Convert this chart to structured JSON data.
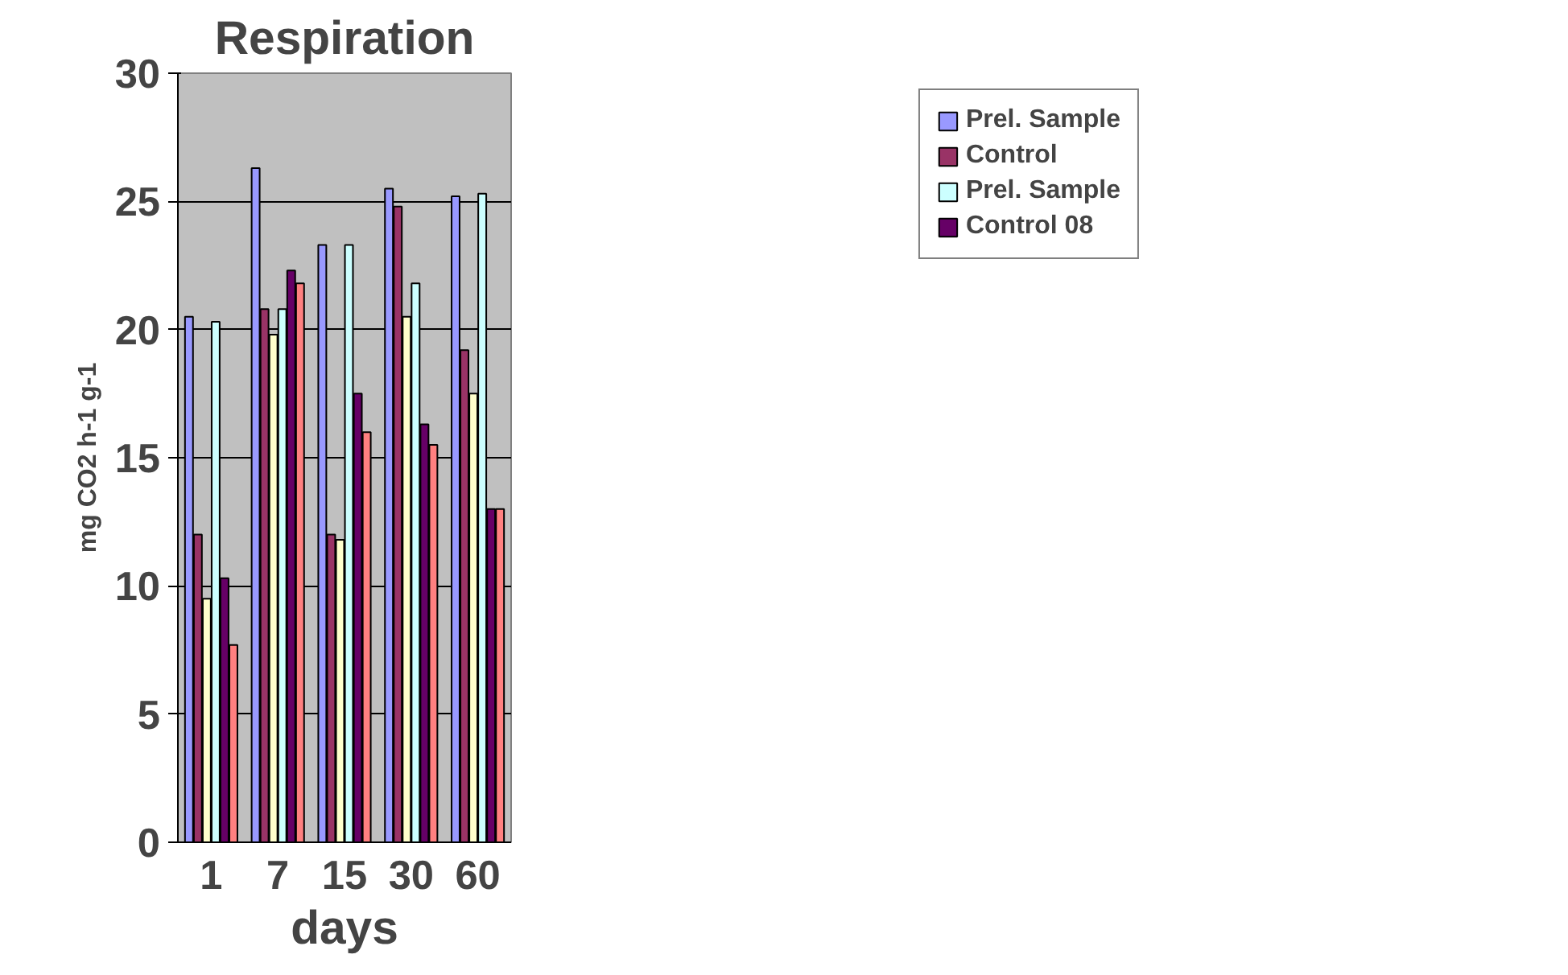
{
  "chart_data": {
    "type": "bar",
    "title": "Respiration",
    "xlabel": "days",
    "ylabel": "mg CO2 h-1 g-1",
    "categories": [
      "1",
      "7",
      "15",
      "30",
      "60"
    ],
    "series": [
      {
        "name": "Prel. Sample",
        "color": "#9999ff",
        "values": [
          20.5,
          26.3,
          23.3,
          25.5,
          25.2
        ]
      },
      {
        "name": "Control",
        "color": "#993366",
        "values": [
          12,
          20.8,
          12,
          24.8,
          19.2
        ]
      },
      {
        "color": "#ffffcc",
        "values": [
          9.5,
          19.8,
          11.8,
          20.5,
          17.5
        ]
      },
      {
        "name": "Prel. Sample",
        "color": "#ccffff",
        "values": [
          20.3,
          20.8,
          23.3,
          21.8,
          25.3
        ]
      },
      {
        "name": "Control 08",
        "color": "#660066",
        "values": [
          10.3,
          22.3,
          17.5,
          16.3,
          13
        ]
      },
      {
        "color": "#ff8080",
        "values": [
          7.7,
          21.8,
          16,
          15.5,
          13
        ]
      }
    ],
    "ylim": [
      0,
      30
    ],
    "yticks": [
      0,
      5,
      10,
      15,
      20,
      25,
      30
    ],
    "grid": "y",
    "legend": "top right"
  }
}
